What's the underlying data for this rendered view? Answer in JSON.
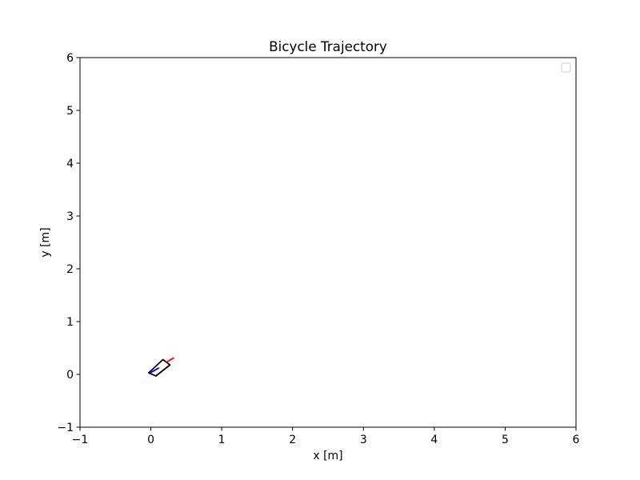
{
  "chart_data": {
    "type": "line",
    "title": "Bicycle Trajectory",
    "xlabel": "x [m]",
    "ylabel": "y [m]",
    "xlim": [
      -1,
      6
    ],
    "ylim": [
      -1,
      6
    ],
    "xticks": [
      "−1",
      "0",
      "1",
      "2",
      "3",
      "4",
      "5",
      "6"
    ],
    "yticks": [
      "−1",
      "0",
      "1",
      "2",
      "3",
      "4",
      "5",
      "6"
    ],
    "grid": false,
    "legend": {
      "placement": "top-right",
      "entries": []
    },
    "series": [
      {
        "shape": "bicycle-body-outline",
        "color": "#000000",
        "x": [
          -0.03,
          0.17,
          0.27,
          0.07,
          -0.03
        ],
        "y": [
          0.03,
          0.28,
          0.18,
          -0.03,
          0.03
        ]
      },
      {
        "shape": "rear-wheel",
        "color": "#0000ff",
        "x": [
          -0.02,
          0.11
        ],
        "y": [
          0.02,
          0.12
        ]
      },
      {
        "shape": "front-wheel",
        "color": "#ff0000",
        "x": [
          0.22,
          0.32
        ],
        "y": [
          0.23,
          0.31
        ]
      }
    ]
  }
}
